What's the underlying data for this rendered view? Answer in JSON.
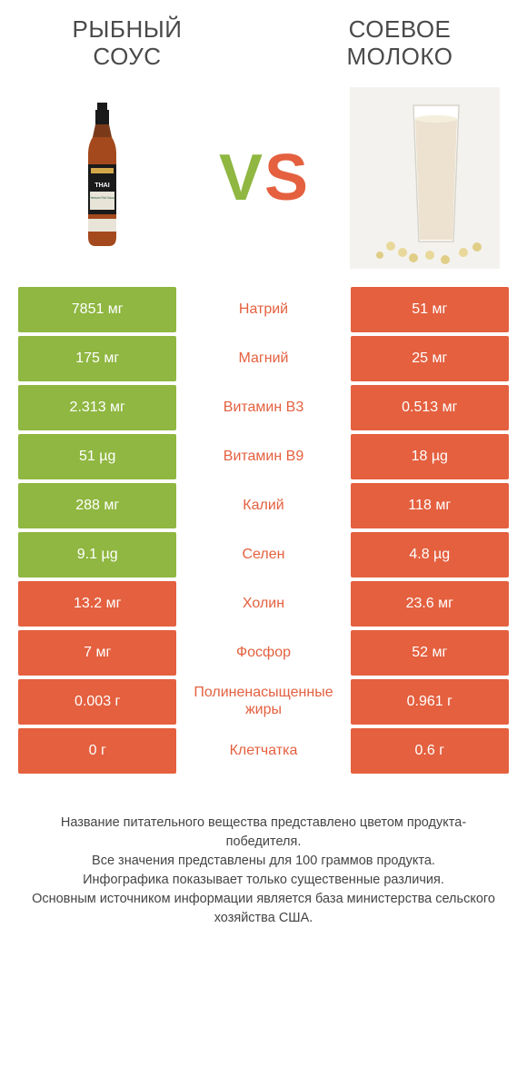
{
  "header": {
    "left_title": "Рыбный Соус",
    "right_title": "Соевое Молоко",
    "vs_v": "V",
    "vs_s": "S"
  },
  "colors": {
    "green": "#8fb741",
    "orange": "#e4603f",
    "text_dark": "#4a4a4a",
    "background": "#ffffff"
  },
  "comparison": {
    "rows": [
      {
        "left": "7851 мг",
        "label": "Натрий",
        "right": "51 мг",
        "left_win": true,
        "right_win": false
      },
      {
        "left": "175 мг",
        "label": "Магний",
        "right": "25 мг",
        "left_win": true,
        "right_win": false
      },
      {
        "left": "2.313 мг",
        "label": "Витамин B3",
        "right": "0.513 мг",
        "left_win": true,
        "right_win": false
      },
      {
        "left": "51 µg",
        "label": "Витамин B9",
        "right": "18 µg",
        "left_win": true,
        "right_win": false
      },
      {
        "left": "288 мг",
        "label": "Калий",
        "right": "118 мг",
        "left_win": true,
        "right_win": false
      },
      {
        "left": "9.1 µg",
        "label": "Селен",
        "right": "4.8 µg",
        "left_win": true,
        "right_win": false
      },
      {
        "left": "13.2 мг",
        "label": "Холин",
        "right": "23.6 мг",
        "left_win": false,
        "right_win": true
      },
      {
        "left": "7 мг",
        "label": "Фосфор",
        "right": "52 мг",
        "left_win": false,
        "right_win": true
      },
      {
        "left": "0.003 г",
        "label": "Полиненасыщенные жиры",
        "right": "0.961 г",
        "left_win": false,
        "right_win": true
      },
      {
        "left": "0 г",
        "label": "Клетчатка",
        "right": "0.6 г",
        "left_win": false,
        "right_win": true
      }
    ]
  },
  "footnote": {
    "line1": "Название питательного вещества представлено цветом продукта-победителя.",
    "line2": "Все значения представлены для 100 граммов продукта.",
    "line3": "Инфографика показывает только существенные различия.",
    "line4": "Основным источником информации является база министерства сельского хозяйства США."
  }
}
